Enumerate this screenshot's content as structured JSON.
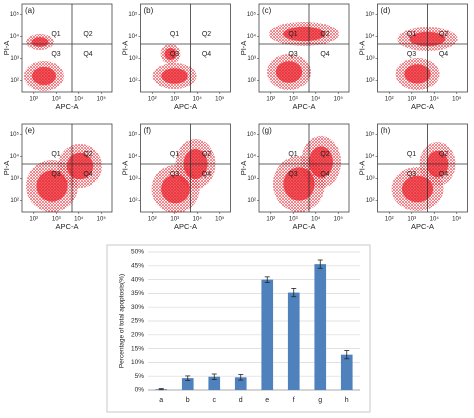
{
  "flow_panels": {
    "labels": [
      "(a)",
      "(b)",
      "(c)",
      "(d)",
      "(e)",
      "(f)",
      "(g)",
      "(h)"
    ],
    "quadrants": [
      "Q1",
      "Q2",
      "Q3",
      "Q4"
    ],
    "xlabel": "APC-A",
    "ylabel": "PI-A",
    "log": true,
    "xlim": [
      30,
      300000
    ],
    "ylim": [
      30,
      300000
    ],
    "xticks": [
      {
        "value": 100,
        "label": "10²"
      },
      {
        "value": 1000,
        "label": "10³"
      },
      {
        "value": 10000,
        "label": "10⁴"
      },
      {
        "value": 100000,
        "label": "10⁵"
      }
    ],
    "yticks": [
      {
        "value": 100,
        "label": "10²"
      },
      {
        "value": 1000,
        "label": "10³"
      },
      {
        "value": 10000,
        "label": "10⁴"
      },
      {
        "value": 100000,
        "label": "10⁵"
      }
    ],
    "color": "#e8202a"
  },
  "chart_data": {
    "type": "bar",
    "ylabel": "Percentage of total apoptosis(%)",
    "categories": [
      "a",
      "b",
      "c",
      "d",
      "e",
      "f",
      "g",
      "h"
    ],
    "values": [
      0.3,
      4.3,
      4.8,
      4.6,
      40,
      35.3,
      45.6,
      12.8
    ],
    "errors": [
      0.2,
      0.8,
      1,
      1,
      1,
      1.5,
      1.5,
      1.5
    ],
    "color": "#4f81bd",
    "grid": true,
    "ylim": [
      0,
      50
    ],
    "yticks": [
      {
        "value": 0,
        "label": "0%"
      },
      {
        "value": 5,
        "label": "5%"
      },
      {
        "value": 10,
        "label": "10%"
      },
      {
        "value": 15,
        "label": "15%"
      },
      {
        "value": 20,
        "label": "20%"
      },
      {
        "value": 25,
        "label": "25%"
      },
      {
        "value": 30,
        "label": "30%"
      },
      {
        "value": 35,
        "label": "35%"
      },
      {
        "value": 40,
        "label": "40%"
      },
      {
        "value": 45,
        "label": "45%"
      },
      {
        "value": 50,
        "label": "50%"
      }
    ]
  }
}
